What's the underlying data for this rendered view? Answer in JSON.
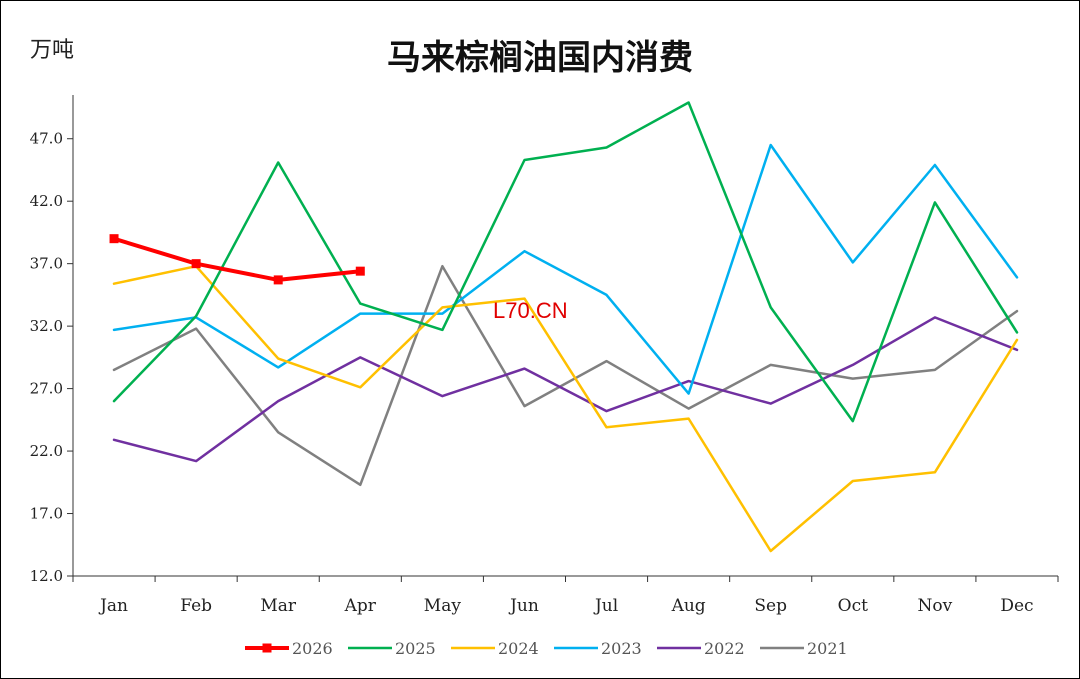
{
  "unit_label": "万吨",
  "title": "马来棕榈油国内消费",
  "watermark": "L70.CN",
  "chart_data": {
    "type": "line",
    "title": "马来棕榈油国内消费",
    "ylabel": "万吨",
    "xlabel": "",
    "categories": [
      "Jan",
      "Feb",
      "Mar",
      "Apr",
      "May",
      "Jun",
      "Jul",
      "Aug",
      "Sep",
      "Oct",
      "Nov",
      "Dec"
    ],
    "ylim": [
      12.0,
      50.5
    ],
    "yticks": [
      "12.0",
      "17.0",
      "22.0",
      "27.0",
      "32.0",
      "37.0",
      "42.0",
      "47.0"
    ],
    "ytick_values": [
      12,
      17,
      22,
      27,
      32,
      37,
      42,
      47
    ],
    "grid": false,
    "legend_position": "bottom",
    "series": [
      {
        "name": "2026",
        "color": "#ff0000",
        "markers": true,
        "values": [
          39.0,
          37.0,
          35.7,
          36.4,
          null,
          null,
          null,
          null,
          null,
          null,
          null,
          null
        ]
      },
      {
        "name": "2025",
        "color": "#00b050",
        "values": [
          26.0,
          32.8,
          45.1,
          33.8,
          31.7,
          45.3,
          46.3,
          49.9,
          33.5,
          24.4,
          41.9,
          31.5
        ]
      },
      {
        "name": "2024",
        "color": "#ffc000",
        "values": [
          35.4,
          36.8,
          29.4,
          27.1,
          33.5,
          34.2,
          23.9,
          24.6,
          14.0,
          19.6,
          20.3,
          30.9
        ]
      },
      {
        "name": "2023",
        "color": "#00b0f0",
        "values": [
          31.7,
          32.7,
          28.7,
          33.0,
          33.0,
          38.0,
          34.5,
          26.6,
          46.5,
          37.1,
          44.9,
          35.9
        ]
      },
      {
        "name": "2022",
        "color": "#7030a0",
        "values": [
          22.9,
          21.2,
          26.0,
          29.5,
          26.4,
          28.6,
          25.2,
          27.6,
          25.8,
          28.9,
          32.7,
          30.1
        ]
      },
      {
        "name": "2021",
        "color": "#808080",
        "values": [
          28.5,
          31.8,
          23.5,
          19.3,
          36.8,
          25.6,
          29.2,
          25.4,
          28.9,
          27.8,
          28.5,
          33.2
        ]
      }
    ]
  }
}
